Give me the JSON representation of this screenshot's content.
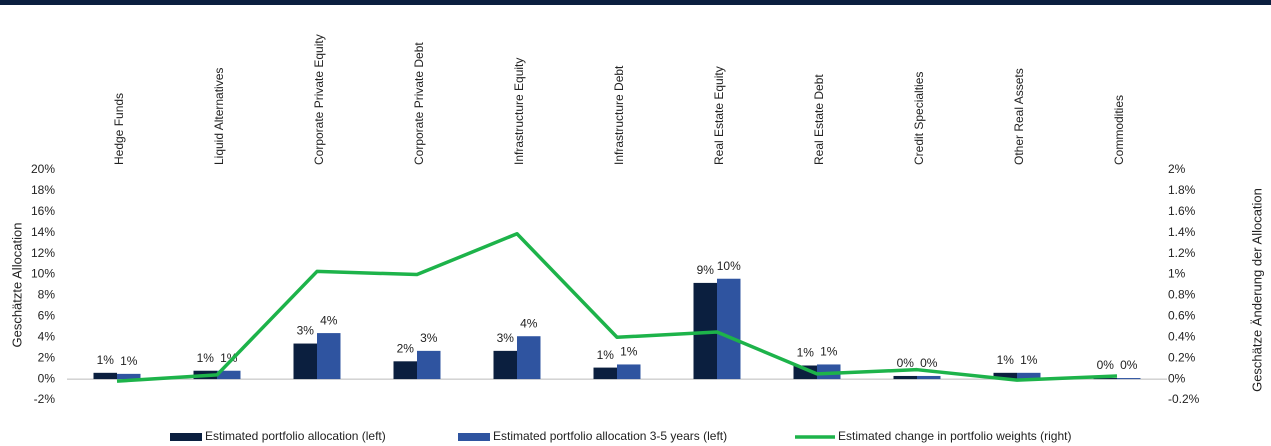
{
  "chart_data": {
    "type": "bar",
    "categories": [
      "Hedge Funds",
      "Liquid Alternatives",
      "Corporate Private Equity",
      "Corporate Private Debt",
      "Infrastructure Equity",
      "Infrastructure Debt",
      "Real Estate Equity",
      "Real Estate Debt",
      "Credit Specialties",
      "Other Real Assets",
      "Commodities"
    ],
    "series": [
      {
        "name": "Estimated portfolio allocation (left)",
        "color": "#0b1f3f",
        "type": "bar",
        "values": [
          0.6,
          0.8,
          3.4,
          1.7,
          2.7,
          1.1,
          9.2,
          1.3,
          0.3,
          0.6,
          0.1
        ],
        "value_labels": [
          "1%",
          "1%",
          "3%",
          "2%",
          "3%",
          "1%",
          "9%",
          "1%",
          "0%",
          "1%",
          "0%"
        ]
      },
      {
        "name": "Estimated portfolio allocation 3-5 years (left)",
        "color": "#2f54a0",
        "type": "bar",
        "values": [
          0.5,
          0.8,
          4.4,
          2.7,
          4.1,
          1.4,
          9.6,
          1.4,
          0.3,
          0.6,
          0.1
        ],
        "value_labels": [
          "1%",
          "1%",
          "4%",
          "3%",
          "4%",
          "1%",
          "10%",
          "1%",
          "0%",
          "1%",
          "0%"
        ]
      },
      {
        "name": "Estimated change in portfolio weights (right)",
        "color": "#1db34a",
        "type": "line",
        "axis": "y2",
        "values": [
          -0.02,
          0.04,
          1.03,
          1.0,
          1.39,
          0.4,
          0.45,
          0.05,
          0.09,
          -0.01,
          0.03
        ]
      }
    ],
    "ylabel": "Geschätzte Allocation",
    "y2label": "Geschätze Änderung der Allocation",
    "ylim": [
      -2,
      20
    ],
    "yticks": [
      {
        "value": -2,
        "label": "-2%"
      },
      {
        "value": 0,
        "label": "0%"
      },
      {
        "value": 2,
        "label": "2%"
      },
      {
        "value": 4,
        "label": "4%"
      },
      {
        "value": 6,
        "label": "6%"
      },
      {
        "value": 8,
        "label": "8%"
      },
      {
        "value": 10,
        "label": "10%"
      },
      {
        "value": 12,
        "label": "12%"
      },
      {
        "value": 14,
        "label": "14%"
      },
      {
        "value": 16,
        "label": "16%"
      },
      {
        "value": 18,
        "label": "18%"
      },
      {
        "value": 20,
        "label": "20%"
      }
    ],
    "y2lim": [
      -0.2,
      2
    ],
    "y2ticks": [
      {
        "value": -0.2,
        "label": "-0.2%"
      },
      {
        "value": 0,
        "label": "0%"
      },
      {
        "value": 0.2,
        "label": "0.2%"
      },
      {
        "value": 0.4,
        "label": "0.4%"
      },
      {
        "value": 0.6,
        "label": "0.6%"
      },
      {
        "value": 0.8,
        "label": "0.8%"
      },
      {
        "value": 1,
        "label": "1%"
      },
      {
        "value": 1.2,
        "label": "1.2%"
      },
      {
        "value": 1.4,
        "label": "1.4%"
      },
      {
        "value": 1.6,
        "label": "1.6%"
      },
      {
        "value": 1.8,
        "label": "1.8%"
      },
      {
        "value": 2,
        "label": "2%"
      }
    ],
    "legend": "bottom"
  }
}
